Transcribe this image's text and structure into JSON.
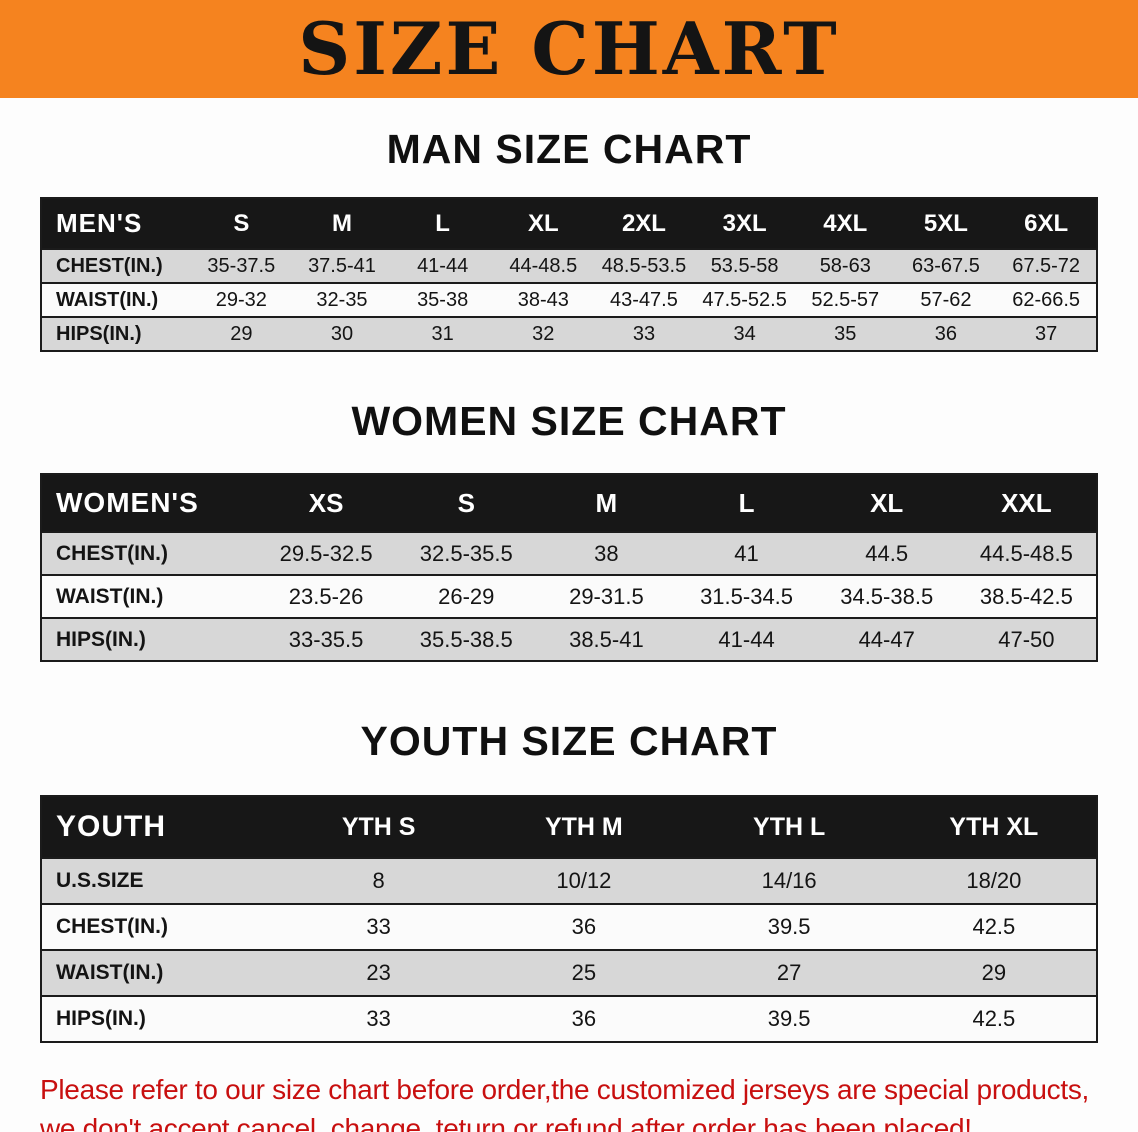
{
  "banner": {
    "title": "SIZE CHART",
    "bg_color": "#f5831f",
    "text_color": "#141414"
  },
  "sections": {
    "man": {
      "heading": "MAN SIZE CHART"
    },
    "women": {
      "heading": "WOMEN SIZE CHART"
    },
    "youth": {
      "heading": "YOUTH SIZE CHART"
    }
  },
  "tables": {
    "men": {
      "header": [
        "MEN'S",
        "S",
        "M",
        "L",
        "XL",
        "2XL",
        "3XL",
        "4XL",
        "5XL",
        "6XL"
      ],
      "rows": [
        [
          "CHEST(IN.)",
          "35-37.5",
          "37.5-41",
          "41-44",
          "44-48.5",
          "48.5-53.5",
          "53.5-58",
          "58-63",
          "63-67.5",
          "67.5-72"
        ],
        [
          "WAIST(IN.)",
          "29-32",
          "32-35",
          "35-38",
          "38-43",
          "43-47.5",
          "47.5-52.5",
          "52.5-57",
          "57-62",
          "62-66.5"
        ],
        [
          "HIPS(IN.)",
          "29",
          "30",
          "31",
          "32",
          "33",
          "34",
          "35",
          "36",
          "37"
        ]
      ]
    },
    "women": {
      "header": [
        "WOMEN'S",
        "XS",
        "S",
        "M",
        "L",
        "XL",
        "XXL"
      ],
      "rows": [
        [
          "CHEST(IN.)",
          "29.5-32.5",
          "32.5-35.5",
          "38",
          "41",
          "44.5",
          "44.5-48.5"
        ],
        [
          "WAIST(IN.)",
          "23.5-26",
          "26-29",
          "29-31.5",
          "31.5-34.5",
          "34.5-38.5",
          "38.5-42.5"
        ],
        [
          "HIPS(IN.)",
          "33-35.5",
          "35.5-38.5",
          "38.5-41",
          "41-44",
          "44-47",
          "47-50"
        ]
      ]
    },
    "youth": {
      "header": [
        "YOUTH",
        "YTH S",
        "YTH M",
        "YTH L",
        "YTH XL"
      ],
      "rows": [
        [
          "U.S.SIZE",
          "8",
          "10/12",
          "14/16",
          "18/20"
        ],
        [
          "CHEST(IN.)",
          "33",
          "36",
          "39.5",
          "42.5"
        ],
        [
          "WAIST(IN.)",
          "23",
          "25",
          "27",
          "29"
        ],
        [
          "HIPS(IN.)",
          "33",
          "36",
          "39.5",
          "42.5"
        ]
      ]
    }
  },
  "disclaimer": {
    "line1": "Please refer to our size chart before order,the customized jerseys are special products,",
    "line2": "we don't accept cancel, change, teturn or refund after order has been placed!",
    "color": "#c80f0f"
  },
  "colors": {
    "banner_orange": "#f5831f",
    "table_header_black": "#171717",
    "stripe_gray": "#d7d7d7",
    "disclaimer_red": "#c80f0f"
  }
}
